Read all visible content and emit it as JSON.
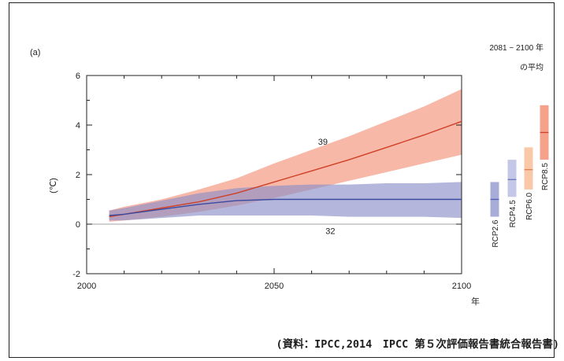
{
  "chart_data": {
    "type": "line",
    "panel_label": "(a)",
    "ylabel": "(℃)",
    "x_unit_label": "年",
    "xlim": [
      2000,
      2100
    ],
    "ylim": [
      -2,
      6
    ],
    "x_ticks": [
      2000,
      2050,
      2100
    ],
    "y_ticks": [
      -2,
      0,
      2,
      4,
      6
    ],
    "series": [
      {
        "color": "#d04028",
        "band_color": "#f5a08a",
        "count_label": "39",
        "x": [
          2006,
          2010,
          2020,
          2030,
          2040,
          2050,
          2060,
          2070,
          2080,
          2090,
          2100
        ],
        "values": [
          0.3,
          0.4,
          0.65,
          0.9,
          1.25,
          1.7,
          2.15,
          2.6,
          3.1,
          3.6,
          4.15
        ],
        "lower": [
          0.1,
          0.15,
          0.3,
          0.5,
          0.75,
          1.05,
          1.4,
          1.75,
          2.1,
          2.45,
          2.8
        ],
        "upper": [
          0.55,
          0.7,
          1.0,
          1.4,
          1.85,
          2.45,
          3.0,
          3.55,
          4.15,
          4.75,
          5.45
        ]
      },
      {
        "color": "#3a4aa0",
        "band_color": "#8c90c8",
        "count_label": "32",
        "x": [
          2006,
          2010,
          2020,
          2030,
          2040,
          2050,
          2060,
          2070,
          2080,
          2090,
          2100
        ],
        "values": [
          0.35,
          0.4,
          0.6,
          0.8,
          0.95,
          1.0,
          1.0,
          1.0,
          1.0,
          1.0,
          1.0
        ],
        "lower": [
          0.15,
          0.15,
          0.25,
          0.35,
          0.35,
          0.35,
          0.35,
          0.3,
          0.3,
          0.3,
          0.25
        ],
        "upper": [
          0.55,
          0.65,
          0.95,
          1.25,
          1.45,
          1.55,
          1.6,
          1.6,
          1.65,
          1.65,
          1.7
        ]
      }
    ],
    "side_panel": {
      "title_line1": "2081 ~ 2100 年",
      "title_line2": "の平均",
      "scenarios": [
        {
          "name": "RCP2.6",
          "mean": 1.0,
          "low": 0.3,
          "high": 1.7,
          "band_color": "#a8acd8",
          "line_color": "#5060b0"
        },
        {
          "name": "RCP4.5",
          "mean": 1.8,
          "low": 1.1,
          "high": 2.6,
          "band_color": "#c4c8e6",
          "line_color": "#6a78c0"
        },
        {
          "name": "RCP6.0",
          "mean": 2.2,
          "low": 1.4,
          "high": 3.1,
          "band_color": "#f8c8a8",
          "line_color": "#e08050"
        },
        {
          "name": "RCP8.5",
          "mean": 3.7,
          "low": 2.6,
          "high": 4.8,
          "band_color": "#f4a28c",
          "line_color": "#d04028"
        }
      ]
    }
  },
  "source_text": "(資料：IPCC,2014　IPCC 第５次評価報告書統合報告書)"
}
